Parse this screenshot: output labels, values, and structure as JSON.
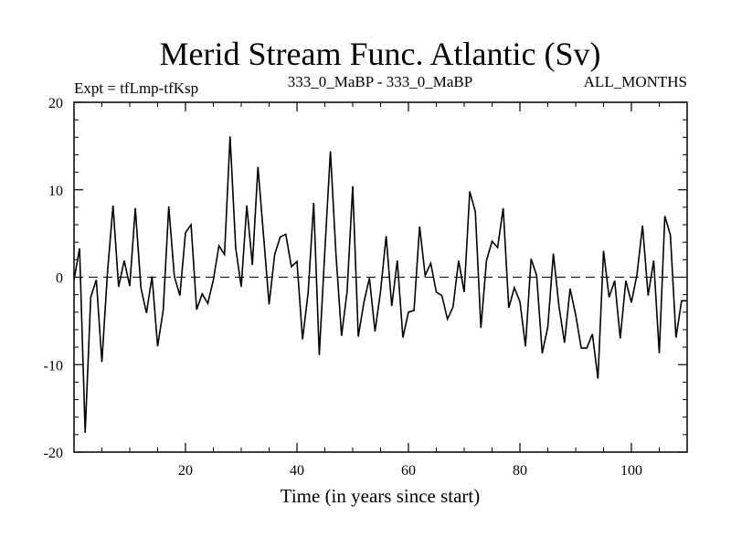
{
  "header": {
    "title": "Merid Stream Func. Atlantic (Sv)",
    "left_label": "Expt = tfLmp-tfKsp",
    "center_label": "333_0_MaBP - 333_0_MaBP",
    "right_label": "ALL_MONTHS"
  },
  "colors": {
    "line": "#000000",
    "zero_line": "#000000",
    "background": "#ffffff"
  },
  "chart_data": {
    "type": "line",
    "title": "Merid Stream Func. Atlantic (Sv)",
    "xlabel": "Time (in years since start)",
    "ylabel": "",
    "xlim": [
      0,
      110
    ],
    "ylim": [
      -20,
      20
    ],
    "x_ticks": [
      20,
      40,
      60,
      80,
      100
    ],
    "x_tick_labels": [
      "20",
      "40",
      "60",
      "80",
      "100"
    ],
    "y_ticks": [
      -20,
      -10,
      0,
      10,
      20
    ],
    "y_tick_labels": [
      "-20",
      "-10",
      "0",
      "10",
      "20"
    ],
    "zero_reference_line": 0,
    "grid": false,
    "series": [
      {
        "name": "tfLmp-tfKsp",
        "x": [
          0,
          1,
          2,
          3,
          4,
          5,
          6,
          7,
          8,
          9,
          10,
          11,
          12,
          13,
          14,
          15,
          16,
          17,
          18,
          19,
          20,
          21,
          22,
          23,
          24,
          25,
          26,
          27,
          28,
          29,
          30,
          31,
          32,
          33,
          34,
          35,
          36,
          37,
          38,
          39,
          40,
          41,
          42,
          43,
          44,
          45,
          46,
          47,
          48,
          49,
          50,
          51,
          52,
          53,
          54,
          55,
          56,
          57,
          58,
          59,
          60,
          61,
          62,
          63,
          64,
          65,
          66,
          67,
          68,
          69,
          70,
          71,
          72,
          73,
          74,
          75,
          76,
          77,
          78,
          79,
          80,
          81,
          82,
          83,
          84,
          85,
          86,
          87,
          88,
          89,
          90,
          91,
          92,
          93,
          94,
          95,
          96,
          97,
          98,
          99,
          100,
          101,
          102,
          103,
          104,
          105,
          106,
          107,
          108,
          109,
          110
        ],
        "values": [
          -0.3,
          3.3,
          -17.8,
          -2.3,
          -0.3,
          -9.7,
          0.5,
          8.2,
          -1.1,
          1.9,
          -1.0,
          7.9,
          -1.2,
          -4.1,
          0.1,
          -7.9,
          -3.8,
          8.1,
          0.1,
          -2.1,
          5.1,
          6.0,
          -3.7,
          -1.9,
          -3.0,
          -0.3,
          3.6,
          2.6,
          16.1,
          3.4,
          -1.1,
          8.2,
          1.4,
          12.6,
          4.8,
          -3.1,
          2.6,
          4.6,
          4.9,
          1.2,
          1.8,
          -7.1,
          -1.8,
          8.5,
          -8.9,
          3.0,
          14.4,
          2.6,
          -6.7,
          -1.6,
          10.4,
          -6.8,
          -2.9,
          -0.1,
          -6.2,
          -1.6,
          4.7,
          -3.3,
          1.9,
          -6.9,
          -4.0,
          -3.8,
          5.8,
          0.2,
          1.6,
          -1.7,
          -2.1,
          -4.8,
          -3.4,
          1.9,
          -1.7,
          9.8,
          7.5,
          -5.8,
          1.9,
          4.1,
          3.4,
          7.9,
          -3.5,
          -1.2,
          -2.8,
          -7.9,
          2.1,
          0.2,
          -8.7,
          -5.7,
          2.7,
          -3.3,
          -7.5,
          -1.3,
          -4.3,
          -8.1,
          -8.1,
          -6.5,
          -11.6,
          3.0,
          -2.3,
          -0.4,
          -7.0,
          -0.4,
          -2.9,
          0.3,
          5.9,
          -2.1,
          1.9,
          -8.7,
          7.0,
          4.8,
          -6.9,
          -2.7,
          -2.7
        ]
      }
    ]
  }
}
